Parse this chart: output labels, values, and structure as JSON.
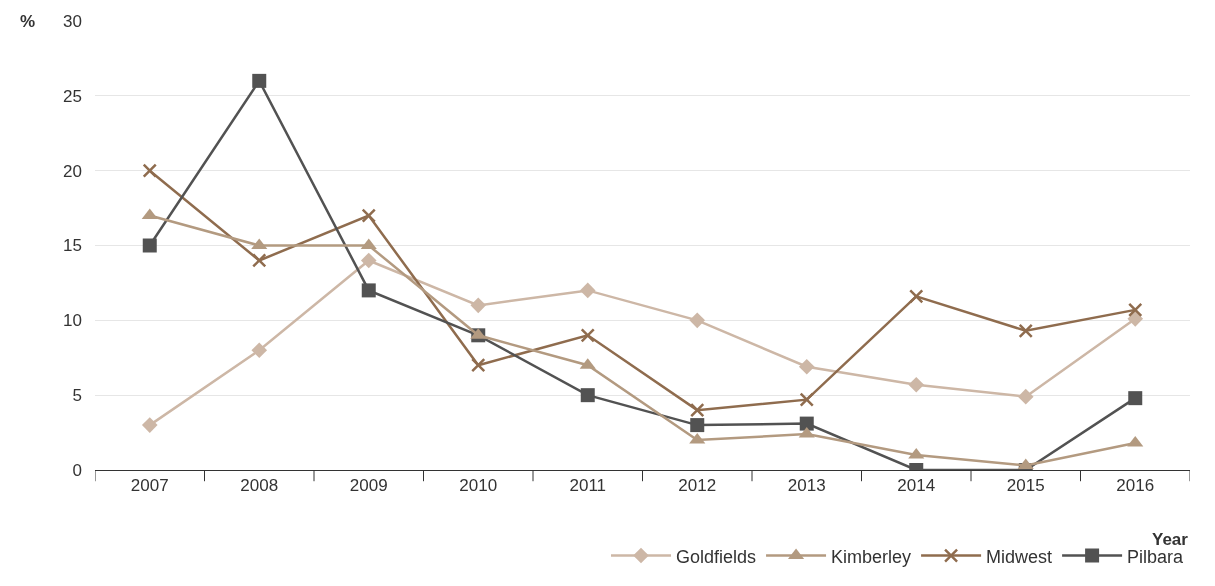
{
  "chart_data": {
    "type": "line",
    "xlabel": "Year",
    "ylabel": "%",
    "categories": [
      "2007",
      "2008",
      "2009",
      "2010",
      "2011",
      "2012",
      "2013",
      "2014",
      "2015",
      "2016"
    ],
    "series": [
      {
        "name": "Goldfields",
        "color": "#cdb7a6",
        "marker": "diamond",
        "values": [
          3,
          8,
          14,
          11,
          12,
          10,
          6.9,
          5.7,
          4.9,
          10.1
        ]
      },
      {
        "name": "Kimberley",
        "color": "#b39a80",
        "marker": "triangle",
        "values": [
          17,
          15,
          15,
          9,
          7,
          2,
          2.4,
          1.0,
          0.3,
          1.8
        ]
      },
      {
        "name": "Midwest",
        "color": "#8f6c4e",
        "marker": "cross",
        "values": [
          20,
          14,
          17,
          7,
          9,
          4,
          4.7,
          11.6,
          9.3,
          10.7
        ]
      },
      {
        "name": "Pilbara",
        "color": "#525252",
        "marker": "square",
        "values": [
          15,
          26,
          12,
          9,
          5,
          3,
          3.1,
          0,
          0,
          4.8
        ]
      }
    ],
    "ylim": [
      0,
      30
    ],
    "yticks": [
      0,
      5,
      10,
      15,
      20,
      25,
      30
    ],
    "grid": "y",
    "legend": "bottom right",
    "line_style": "solid"
  }
}
